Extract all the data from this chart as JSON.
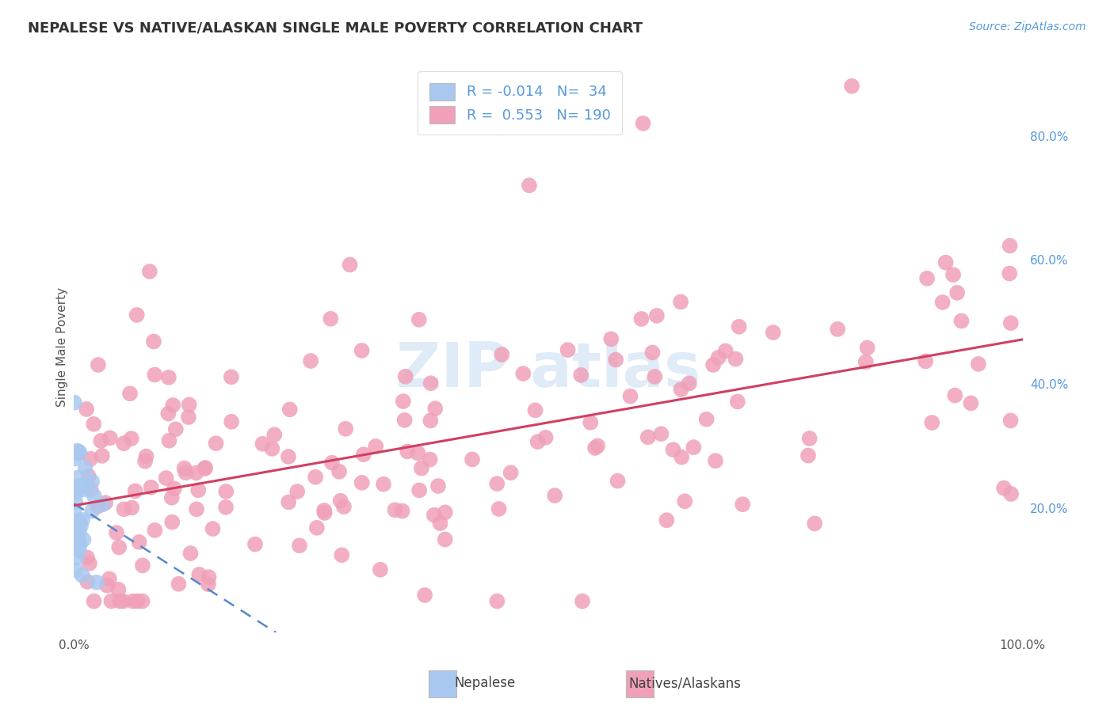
{
  "title": "NEPALESE VS NATIVE/ALASKAN SINGLE MALE POVERTY CORRELATION CHART",
  "source": "Source: ZipAtlas.com",
  "ylabel": "Single Male Poverty",
  "legend": {
    "r1": -0.014,
    "n1": 34,
    "r2": 0.553,
    "n2": 190
  },
  "blue_color": "#A8C8F0",
  "pink_color": "#F0A0B8",
  "blue_line_color": "#5588CC",
  "pink_line_color": "#D04060",
  "yaxis_ticks": [
    "20.0%",
    "40.0%",
    "60.0%",
    "80.0%"
  ],
  "yaxis_tick_vals": [
    0.2,
    0.4,
    0.6,
    0.8
  ],
  "background": "#FFFFFF",
  "grid_color": "#CCCCCC",
  "title_color": "#333333",
  "source_color": "#5599DD",
  "tick_color_blue": "#5599DD",
  "ylabel_color": "#555555"
}
